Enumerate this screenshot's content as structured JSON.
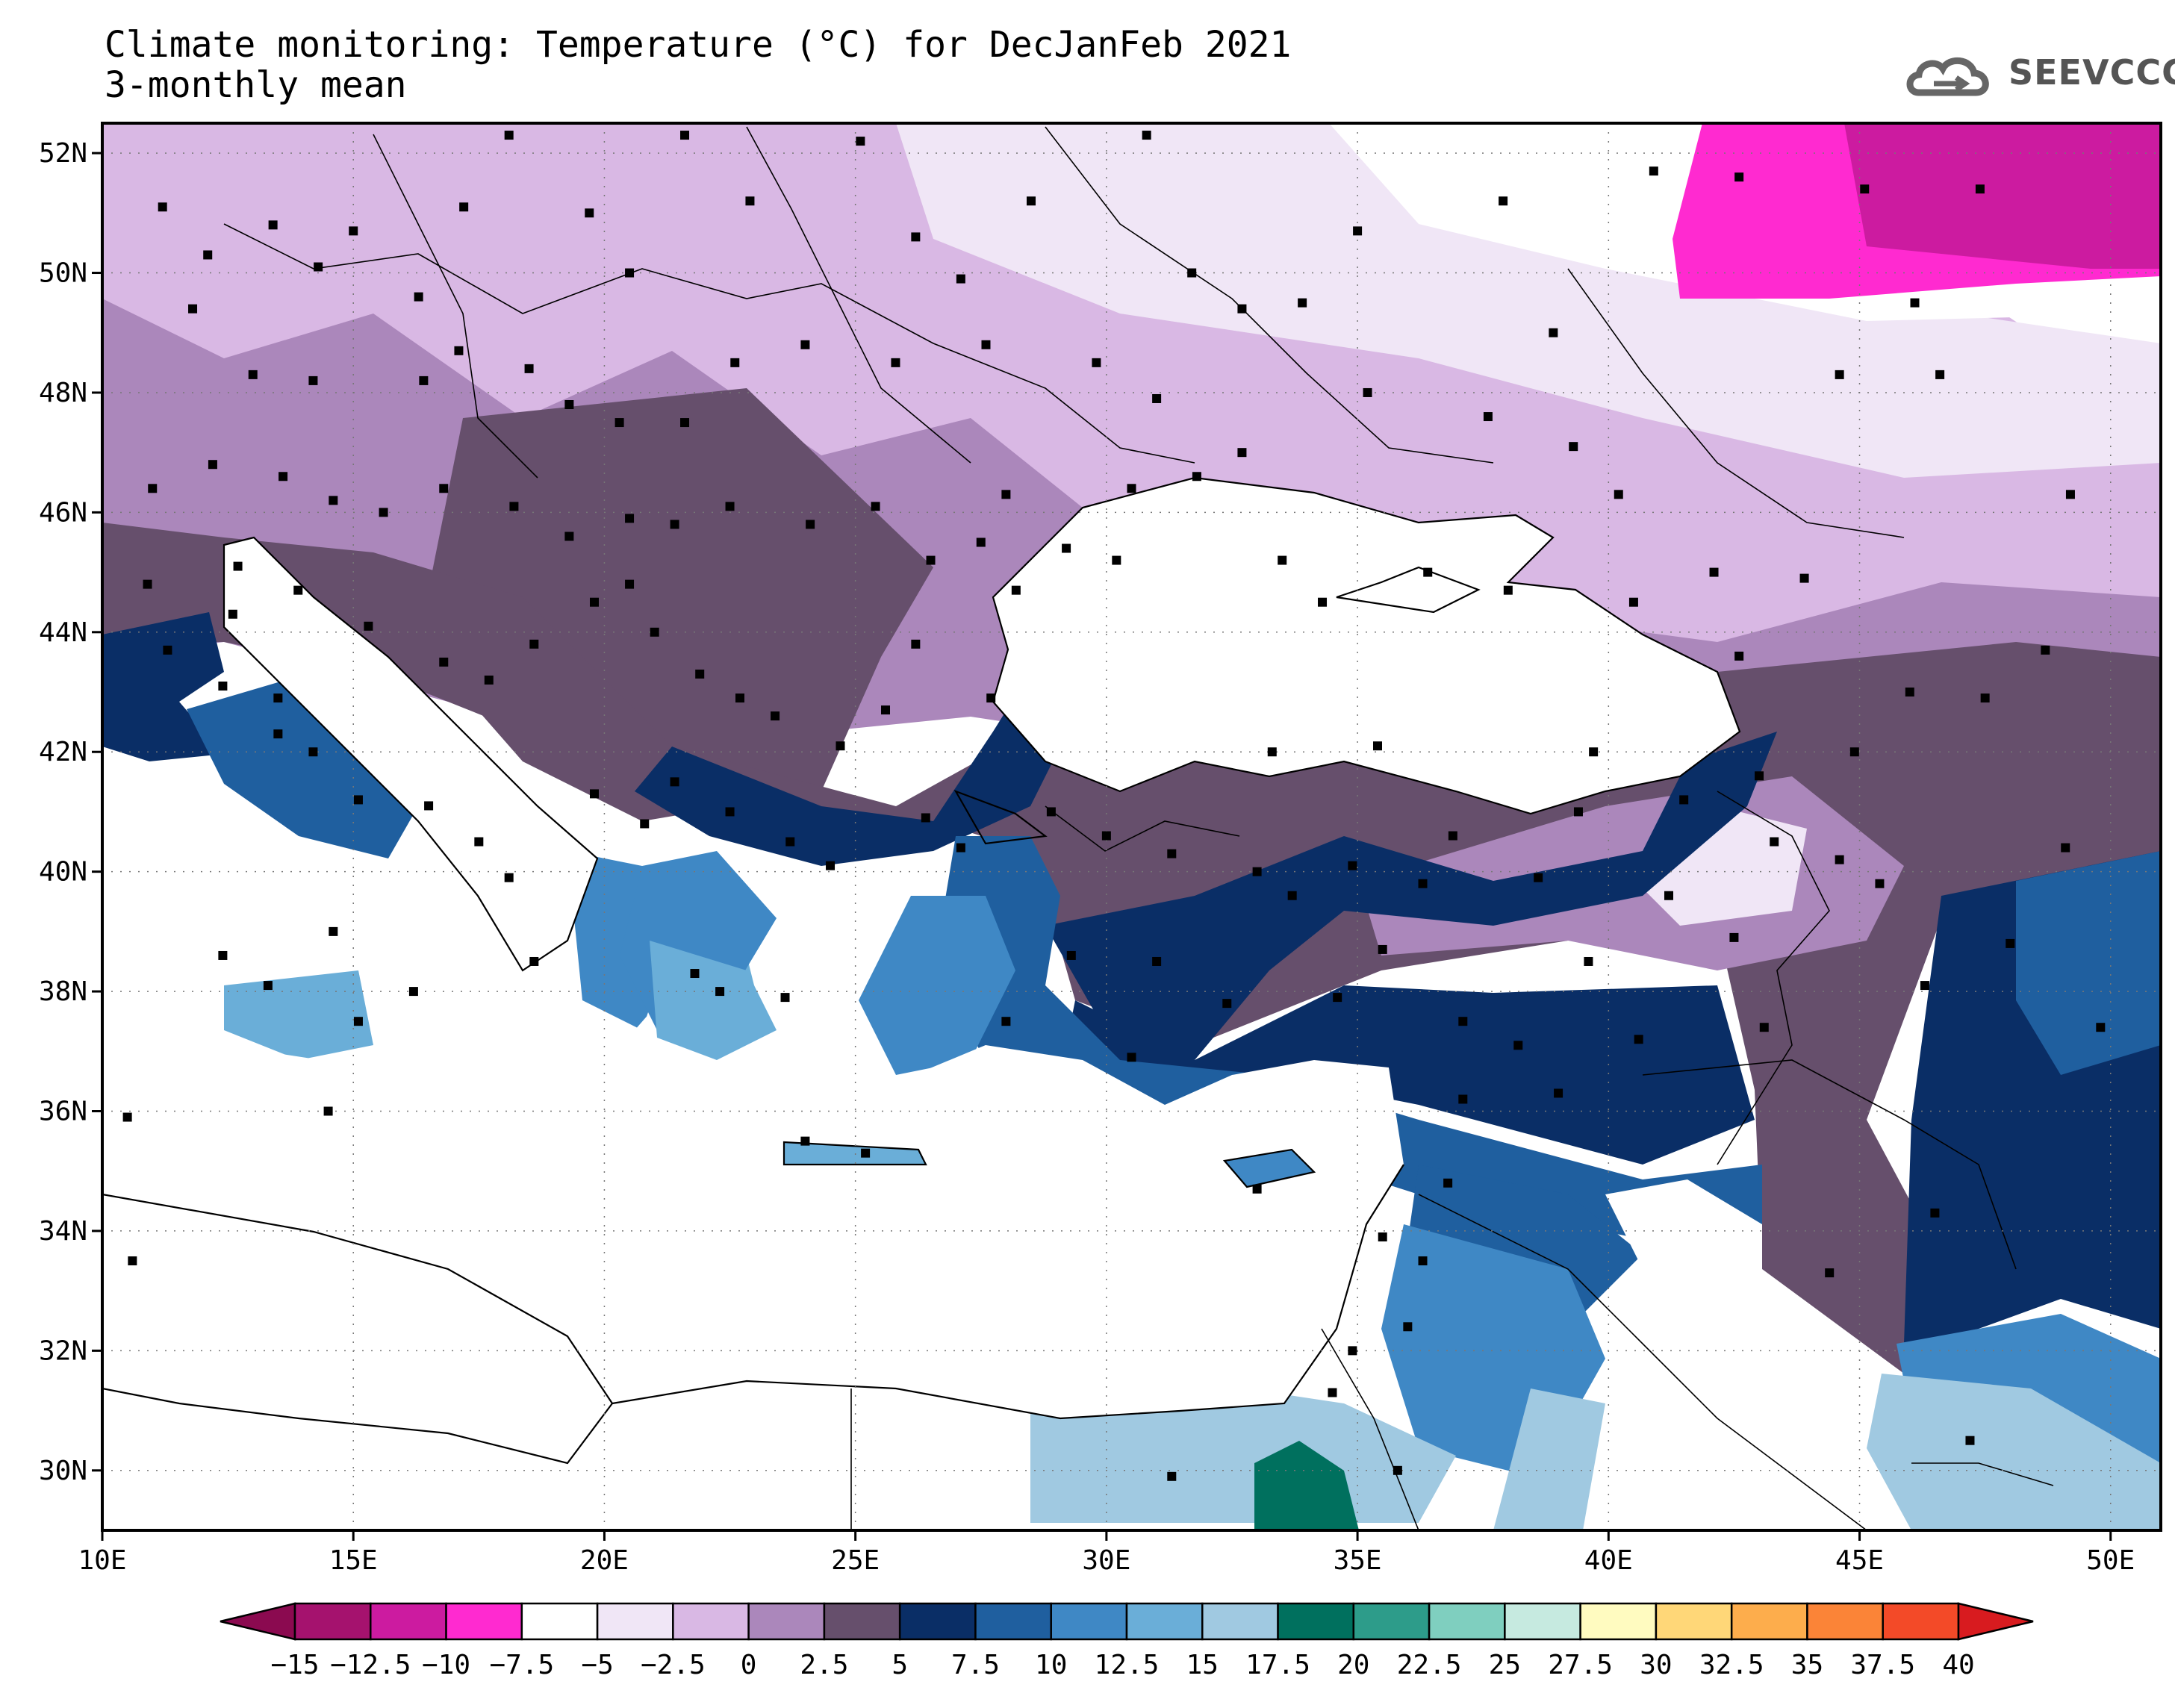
{
  "title": "Climate monitoring: Temperature (°C) for DecJanFeb 2021",
  "subtitle": "3-monthly mean",
  "logo_text": "SEEVCCC",
  "map": {
    "lon_range": [
      10,
      51
    ],
    "lat_range": [
      29,
      52.5
    ],
    "lon_labels": [
      "10E",
      "15E",
      "20E",
      "25E",
      "30E",
      "35E",
      "40E",
      "45E",
      "50E"
    ],
    "lat_labels": [
      "30N",
      "32N",
      "34N",
      "36N",
      "38N",
      "40N",
      "42N",
      "44N",
      "46N",
      "48N",
      "50N",
      "52N"
    ]
  },
  "legend": {
    "labels": [
      "−15",
      "−12.5",
      "−10",
      "−7.5",
      "−5",
      "−2.5",
      "0",
      "2.5",
      "5",
      "7.5",
      "10",
      "12.5",
      "15",
      "17.5",
      "20",
      "22.5",
      "25",
      "27.5",
      "30",
      "32.5",
      "35",
      "37.5",
      "40"
    ],
    "colors": [
      "#8b0a50",
      "#a5126e",
      "#cc1ba0",
      "#ff2ad0",
      "#ffffff",
      "#f0e6f6",
      "#d9b8e4",
      "#ab87bb",
      "#664f6c",
      "#0a2e66",
      "#1f5f9f",
      "#3f88c5",
      "#6aaed8",
      "#a0c9e1",
      "#00705e",
      "#2d9c8a",
      "#7fcfbf",
      "#c6eae0",
      "#fffbc0",
      "#ffd778",
      "#fdad4c",
      "#fb8437",
      "#f34a28",
      "#d81b1f"
    ]
  },
  "stations": [
    [
      11.2,
      51.1
    ],
    [
      12.1,
      50.3
    ],
    [
      13.4,
      50.8
    ],
    [
      14.3,
      50.1
    ],
    [
      15.0,
      50.7
    ],
    [
      16.3,
      49.6
    ],
    [
      17.2,
      51.1
    ],
    [
      18.1,
      52.3
    ],
    [
      19.7,
      51.0
    ],
    [
      20.5,
      50.0
    ],
    [
      21.6,
      52.3
    ],
    [
      22.9,
      51.2
    ],
    [
      25.1,
      52.2
    ],
    [
      26.2,
      50.6
    ],
    [
      27.1,
      49.9
    ],
    [
      28.5,
      51.2
    ],
    [
      30.8,
      52.3
    ],
    [
      31.7,
      50.0
    ],
    [
      32.7,
      49.4
    ],
    [
      33.9,
      49.5
    ],
    [
      35.0,
      50.7
    ],
    [
      37.9,
      51.2
    ],
    [
      38.9,
      49.0
    ],
    [
      40.9,
      51.7
    ],
    [
      11.8,
      49.4
    ],
    [
      13.0,
      48.3
    ],
    [
      14.2,
      48.2
    ],
    [
      16.4,
      48.2
    ],
    [
      17.1,
      48.7
    ],
    [
      18.5,
      48.4
    ],
    [
      19.3,
      47.8
    ],
    [
      20.3,
      47.5
    ],
    [
      21.6,
      47.5
    ],
    [
      22.6,
      48.5
    ],
    [
      24.0,
      48.8
    ],
    [
      25.8,
      48.5
    ],
    [
      27.6,
      48.8
    ],
    [
      29.8,
      48.5
    ],
    [
      31.0,
      47.9
    ],
    [
      32.7,
      47.0
    ],
    [
      35.2,
      48.0
    ],
    [
      37.6,
      47.6
    ],
    [
      39.3,
      47.1
    ],
    [
      40.2,
      46.3
    ],
    [
      12.2,
      46.8
    ],
    [
      13.6,
      46.6
    ],
    [
      14.6,
      46.2
    ],
    [
      15.6,
      46.0
    ],
    [
      16.8,
      46.4
    ],
    [
      18.2,
      46.1
    ],
    [
      19.3,
      45.6
    ],
    [
      20.5,
      45.9
    ],
    [
      21.4,
      45.8
    ],
    [
      22.5,
      46.1
    ],
    [
      24.1,
      45.8
    ],
    [
      25.4,
      46.1
    ],
    [
      26.5,
      45.2
    ],
    [
      27.5,
      45.5
    ],
    [
      28.0,
      46.3
    ],
    [
      29.2,
      45.4
    ],
    [
      30.5,
      46.4
    ],
    [
      31.8,
      46.6
    ],
    [
      33.5,
      45.2
    ],
    [
      34.3,
      44.5
    ],
    [
      36.4,
      45.0
    ],
    [
      38.0,
      44.7
    ],
    [
      12.6,
      44.3
    ],
    [
      13.9,
      44.7
    ],
    [
      15.3,
      44.1
    ],
    [
      16.8,
      43.5
    ],
    [
      17.7,
      43.2
    ],
    [
      18.6,
      43.8
    ],
    [
      19.8,
      44.5
    ],
    [
      20.5,
      44.8
    ],
    [
      21.0,
      44.0
    ],
    [
      21.9,
      43.3
    ],
    [
      22.7,
      42.9
    ],
    [
      23.4,
      42.6
    ],
    [
      24.7,
      42.1
    ],
    [
      25.6,
      42.7
    ],
    [
      26.2,
      43.8
    ],
    [
      27.7,
      42.9
    ],
    [
      11.3,
      43.7
    ],
    [
      12.4,
      43.1
    ],
    [
      13.5,
      42.3
    ],
    [
      14.2,
      42.0
    ],
    [
      15.1,
      41.2
    ],
    [
      16.5,
      41.1
    ],
    [
      17.5,
      40.5
    ],
    [
      18.1,
      39.9
    ],
    [
      19.8,
      41.3
    ],
    [
      20.8,
      40.8
    ],
    [
      21.4,
      41.5
    ],
    [
      22.5,
      41.0
    ],
    [
      23.7,
      40.5
    ],
    [
      24.5,
      40.1
    ],
    [
      26.4,
      40.9
    ],
    [
      27.1,
      40.4
    ],
    [
      28.9,
      41.0
    ],
    [
      30.0,
      40.6
    ],
    [
      31.3,
      40.3
    ],
    [
      33.7,
      39.6
    ],
    [
      35.5,
      38.7
    ],
    [
      36.9,
      40.6
    ],
    [
      38.6,
      39.9
    ],
    [
      39.6,
      38.5
    ],
    [
      41.2,
      39.6
    ],
    [
      42.5,
      38.9
    ],
    [
      43.3,
      40.5
    ],
    [
      44.6,
      40.2
    ],
    [
      45.4,
      39.8
    ],
    [
      46.3,
      38.1
    ],
    [
      48.0,
      38.8
    ],
    [
      49.1,
      40.4
    ],
    [
      49.8,
      37.4
    ],
    [
      15.1,
      37.5
    ],
    [
      13.3,
      38.1
    ],
    [
      16.2,
      38.0
    ],
    [
      14.5,
      36.0
    ],
    [
      22.3,
      38.0
    ],
    [
      23.6,
      37.9
    ],
    [
      21.8,
      38.3
    ],
    [
      25.2,
      35.3
    ],
    [
      24.0,
      35.5
    ],
    [
      33.0,
      34.7
    ],
    [
      34.9,
      32.0
    ],
    [
      35.5,
      33.9
    ],
    [
      36.3,
      33.5
    ],
    [
      38.2,
      37.1
    ],
    [
      40.6,
      37.2
    ],
    [
      43.1,
      37.4
    ],
    [
      46.5,
      34.3
    ],
    [
      44.4,
      33.3
    ],
    [
      47.2,
      30.5
    ],
    [
      31.3,
      29.9
    ],
    [
      34.5,
      31.3
    ],
    [
      35.8,
      30.0
    ],
    [
      36.0,
      32.4
    ],
    [
      36.8,
      34.8
    ],
    [
      37.1,
      36.2
    ],
    [
      39.0,
      36.3
    ],
    [
      30.5,
      36.9
    ],
    [
      28.0,
      37.5
    ],
    [
      29.3,
      38.6
    ],
    [
      32.4,
      37.8
    ],
    [
      34.6,
      37.9
    ],
    [
      36.3,
      39.8
    ],
    [
      37.1,
      37.5
    ],
    [
      39.4,
      41.0
    ],
    [
      41.5,
      41.2
    ],
    [
      43.0,
      41.6
    ],
    [
      44.9,
      42.0
    ],
    [
      46.0,
      43.0
    ],
    [
      47.5,
      42.9
    ],
    [
      48.7,
      43.7
    ],
    [
      42.6,
      43.6
    ],
    [
      39.7,
      42.0
    ],
    [
      33.0,
      40.0
    ],
    [
      31.0,
      38.5
    ],
    [
      10.5,
      35.9
    ],
    [
      10.6,
      33.5
    ],
    [
      14.6,
      39.0
    ],
    [
      18.6,
      38.5
    ],
    [
      12.4,
      38.6
    ],
    [
      10.9,
      44.8
    ],
    [
      11.0,
      46.4
    ],
    [
      12.7,
      45.1
    ],
    [
      13.5,
      42.9
    ],
    [
      28.2,
      44.7
    ],
    [
      30.2,
      45.2
    ],
    [
      33.3,
      42.0
    ],
    [
      34.9,
      40.1
    ],
    [
      35.4,
      42.1
    ],
    [
      44.6,
      48.3
    ],
    [
      46.1,
      49.5
    ],
    [
      49.2,
      46.3
    ],
    [
      47.4,
      51.4
    ],
    [
      45.1,
      51.4
    ],
    [
      42.6,
      51.6
    ],
    [
      46.6,
      48.3
    ],
    [
      42.1,
      45.0
    ],
    [
      43.9,
      44.9
    ],
    [
      40.5,
      44.5
    ]
  ]
}
